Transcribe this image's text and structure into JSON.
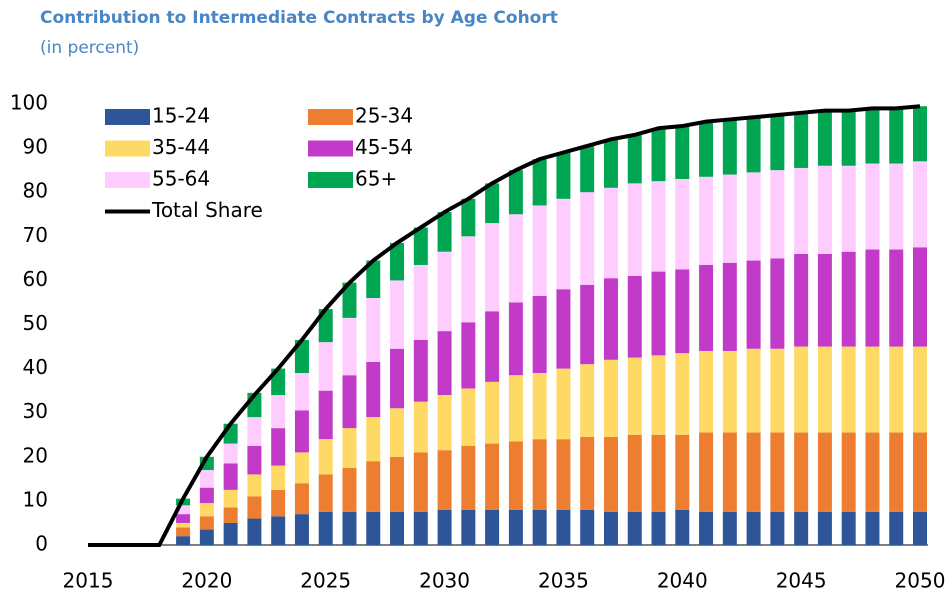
{
  "chart_data": {
    "type": "stacked_bar",
    "title": "Contribution to Intermediate Contracts by Age Cohort",
    "subtitle": "(in percent)",
    "x": [
      2015,
      2016,
      2017,
      2018,
      2019,
      2020,
      2021,
      2022,
      2023,
      2024,
      2025,
      2026,
      2027,
      2028,
      2029,
      2030,
      2031,
      2032,
      2033,
      2034,
      2035,
      2036,
      2037,
      2038,
      2039,
      2040,
      2041,
      2042,
      2043,
      2044,
      2045,
      2046,
      2047,
      2048,
      2049,
      2050
    ],
    "xlim": [
      2015,
      2050
    ],
    "xticks": [
      2015,
      2020,
      2025,
      2030,
      2035,
      2040,
      2045,
      2050
    ],
    "ylim": [
      0,
      100
    ],
    "yticks": [
      0,
      10,
      20,
      30,
      40,
      50,
      60,
      70,
      80,
      90,
      100
    ],
    "grid": false,
    "legend": "upper left",
    "series": [
      {
        "name": "15-24",
        "color": "#2e5597",
        "values": [
          null,
          null,
          null,
          null,
          2,
          3.5,
          5,
          6,
          6.5,
          7,
          7.5,
          7.5,
          7.5,
          7.5,
          7.5,
          8,
          8,
          8,
          8,
          8,
          8,
          8,
          7.5,
          7.5,
          7.5,
          8,
          7.5,
          7.5,
          7.5,
          7.5,
          7.5,
          7.5,
          7.5,
          7.5,
          7.5,
          7.5
        ]
      },
      {
        "name": "25-34",
        "color": "#ed7d31",
        "values": [
          null,
          null,
          null,
          null,
          2,
          3,
          3.5,
          5,
          6,
          7,
          8.5,
          10,
          11.5,
          12.5,
          13.5,
          13.5,
          14.5,
          15,
          15.5,
          16,
          16,
          16.5,
          17,
          17.5,
          17.5,
          17,
          18,
          18,
          18,
          18,
          18,
          18,
          18,
          18,
          18,
          18
        ]
      },
      {
        "name": "35-44",
        "color": "#ffd966",
        "values": [
          null,
          null,
          null,
          null,
          1,
          3,
          4,
          5,
          5.5,
          7,
          8,
          9,
          10,
          11,
          11.5,
          12.5,
          13,
          14,
          15,
          15,
          16,
          16.5,
          17.5,
          17.5,
          18,
          18.5,
          18.5,
          18.5,
          19,
          19,
          19.5,
          19.5,
          19.5,
          19.5,
          19.5,
          19.5
        ]
      },
      {
        "name": "45-54",
        "color": "#c23bc8",
        "values": [
          null,
          null,
          null,
          null,
          2,
          3.5,
          6,
          6.5,
          8.5,
          9.5,
          11,
          12,
          12.5,
          13.5,
          14,
          14.5,
          15,
          16,
          16.5,
          17.5,
          18,
          18,
          18.5,
          18.5,
          19,
          19,
          19.5,
          20,
          20,
          20.5,
          21,
          21,
          21.5,
          22,
          22,
          22.5
        ]
      },
      {
        "name": "55-64",
        "color": "#ffccff",
        "values": [
          null,
          null,
          null,
          null,
          2,
          4,
          4.5,
          6.5,
          7.5,
          8.5,
          11,
          13,
          14.5,
          15.5,
          17,
          18,
          19.5,
          20,
          20,
          20.5,
          20.5,
          21,
          20.5,
          21,
          20.5,
          20.5,
          20,
          20,
          20,
          20,
          19.5,
          20,
          19.5,
          19.5,
          19.5,
          19.5
        ]
      },
      {
        "name": "65+",
        "color": "#00a651",
        "values": [
          null,
          null,
          null,
          null,
          1.5,
          3,
          4.5,
          5.5,
          6,
          7.5,
          7.5,
          8,
          8.5,
          8.5,
          8.5,
          9,
          8.5,
          9,
          10,
          10.5,
          10.5,
          10.5,
          11,
          11,
          12,
          12,
          12.5,
          12.5,
          12.5,
          12.5,
          12.5,
          12.5,
          12.5,
          12.5,
          12.5,
          12.5
        ]
      },
      {
        "name": "Total Share",
        "color": "#000000",
        "kind": "line",
        "values": [
          0,
          0,
          0,
          0,
          10.5,
          20,
          27.5,
          34,
          40,
          46.5,
          53.5,
          59.5,
          64.5,
          68.5,
          72,
          75.5,
          78.5,
          82,
          85,
          87.5,
          89,
          90.5,
          92,
          93,
          94.5,
          95,
          96,
          96.5,
          97,
          97.5,
          98,
          98.5,
          98.5,
          99,
          99,
          99.5
        ]
      }
    ]
  }
}
